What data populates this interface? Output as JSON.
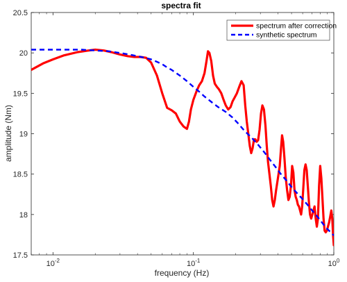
{
  "chart_data": {
    "type": "line",
    "title": "spectra fit",
    "xlabel": "frequency (Hz)",
    "ylabel": "amplitude (Nm)",
    "xscale": "log",
    "xlim": [
      0.007,
      1
    ],
    "ylim": [
      17.5,
      20.5
    ],
    "x_ticks": [
      {
        "value": 0.01,
        "base": "10",
        "exp": "-2"
      },
      {
        "value": 0.1,
        "base": "10",
        "exp": "-1"
      },
      {
        "value": 1,
        "base": "10",
        "exp": "0"
      }
    ],
    "y_ticks": [
      "17.5",
      "18",
      "18.5",
      "19",
      "19.5",
      "20",
      "20.5"
    ],
    "grid": false,
    "legend_position": "top-right",
    "series": [
      {
        "name": "spectrum after correction",
        "color": "#ff0000",
        "style": "solid",
        "x": [
          0.007,
          0.0085,
          0.01,
          0.012,
          0.015,
          0.018,
          0.02,
          0.023,
          0.026,
          0.03,
          0.034,
          0.038,
          0.042,
          0.046,
          0.05,
          0.055,
          0.06,
          0.065,
          0.07,
          0.075,
          0.08,
          0.085,
          0.09,
          0.093,
          0.096,
          0.1,
          0.105,
          0.11,
          0.115,
          0.12,
          0.124,
          0.127,
          0.13,
          0.134,
          0.138,
          0.142,
          0.147,
          0.152,
          0.158,
          0.164,
          0.17,
          0.177,
          0.184,
          0.19,
          0.197,
          0.204,
          0.212,
          0.22,
          0.228,
          0.234,
          0.24,
          0.246,
          0.252,
          0.258,
          0.264,
          0.27,
          0.276,
          0.282,
          0.289,
          0.296,
          0.303,
          0.31,
          0.318,
          0.326,
          0.333,
          0.34,
          0.348,
          0.356,
          0.364,
          0.372,
          0.38,
          0.388,
          0.396,
          0.404,
          0.412,
          0.42,
          0.428,
          0.436,
          0.445,
          0.455,
          0.465,
          0.475,
          0.485,
          0.495,
          0.505,
          0.515,
          0.525,
          0.535,
          0.545,
          0.555,
          0.565,
          0.575,
          0.585,
          0.595,
          0.605,
          0.617,
          0.629,
          0.641,
          0.653,
          0.665,
          0.677,
          0.69,
          0.703,
          0.716,
          0.729,
          0.743,
          0.757,
          0.771,
          0.785,
          0.8,
          0.815,
          0.83,
          0.845,
          0.86,
          0.876,
          0.892,
          0.908,
          0.925,
          0.942,
          0.96,
          0.975,
          0.99,
          1.0
        ],
        "y": [
          19.79,
          19.87,
          19.92,
          19.97,
          20.01,
          20.03,
          20.04,
          20.03,
          20.01,
          19.98,
          19.96,
          19.95,
          19.95,
          19.94,
          19.88,
          19.72,
          19.5,
          19.32,
          19.29,
          19.25,
          19.15,
          19.09,
          19.06,
          19.15,
          19.3,
          19.42,
          19.52,
          19.6,
          19.65,
          19.75,
          19.9,
          20.02,
          20.0,
          19.9,
          19.72,
          19.62,
          19.58,
          19.55,
          19.5,
          19.42,
          19.35,
          19.3,
          19.33,
          19.4,
          19.45,
          19.5,
          19.58,
          19.65,
          19.6,
          19.35,
          19.15,
          19.0,
          18.85,
          18.76,
          18.82,
          18.93,
          18.93,
          18.9,
          18.92,
          19.05,
          19.25,
          19.35,
          19.3,
          19.1,
          18.85,
          18.65,
          18.5,
          18.35,
          18.18,
          18.1,
          18.18,
          18.3,
          18.4,
          18.5,
          18.6,
          18.8,
          18.98,
          18.9,
          18.7,
          18.45,
          18.3,
          18.18,
          18.22,
          18.35,
          18.6,
          18.52,
          18.3,
          18.22,
          18.18,
          18.12,
          18.1,
          18.05,
          18.0,
          18.1,
          18.3,
          18.55,
          18.62,
          18.55,
          18.35,
          18.15,
          18.0,
          17.95,
          18.0,
          18.05,
          18.1,
          17.95,
          17.85,
          17.95,
          18.35,
          18.6,
          18.45,
          18.2,
          17.95,
          17.8,
          17.78,
          17.8,
          17.85,
          17.9,
          17.97,
          18.05,
          17.95,
          17.72,
          17.62
        ]
      },
      {
        "name": "synthetic spectrum",
        "color": "#0000ff",
        "style": "dashed",
        "x": [
          0.007,
          0.01,
          0.013,
          0.016,
          0.02,
          0.025,
          0.03,
          0.035,
          0.04,
          0.045,
          0.05,
          0.055,
          0.06,
          0.065,
          0.07,
          0.08,
          0.09,
          0.1,
          0.11,
          0.12,
          0.135,
          0.15,
          0.17,
          0.19,
          0.21,
          0.23,
          0.26,
          0.29,
          0.32,
          0.35,
          0.38,
          0.42,
          0.46,
          0.5,
          0.55,
          0.6,
          0.65,
          0.7,
          0.75,
          0.8,
          0.85,
          0.9,
          0.95,
          1.0
        ],
        "y": [
          20.04,
          20.04,
          20.04,
          20.04,
          20.03,
          20.02,
          20.0,
          19.98,
          19.96,
          19.94,
          19.92,
          19.89,
          19.86,
          19.82,
          19.79,
          19.72,
          19.65,
          19.58,
          19.52,
          19.46,
          19.39,
          19.33,
          19.27,
          19.2,
          19.12,
          19.04,
          18.95,
          18.86,
          18.77,
          18.68,
          18.6,
          18.5,
          18.42,
          18.34,
          18.26,
          18.19,
          18.12,
          18.05,
          17.99,
          17.93,
          17.87,
          17.82,
          17.78,
          17.74
        ]
      }
    ]
  }
}
